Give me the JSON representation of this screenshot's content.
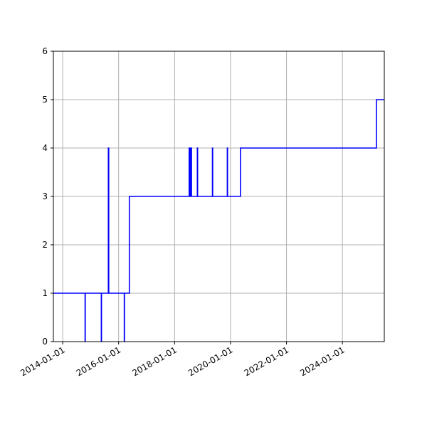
{
  "chart_data": {
    "type": "line",
    "title": "",
    "xlabel": "",
    "ylabel": "",
    "x_axis_kind": "date",
    "xlim": [
      "2013-09-01",
      "2025-07-01"
    ],
    "ylim": [
      0,
      6
    ],
    "grid": true,
    "legend": "none",
    "line_color": "#0000ff",
    "grid_color": "#b0b0b0",
    "x_ticks": [
      "2014-01-01",
      "2016-01-01",
      "2018-01-01",
      "2020-01-01",
      "2022-01-01",
      "2024-01-01"
    ],
    "y_ticks": [
      0,
      1,
      2,
      3,
      4,
      5,
      6
    ],
    "series": [
      {
        "style": "step",
        "points": [
          [
            "2013-09-01",
            1
          ],
          [
            "2014-10-20",
            1
          ],
          [
            "2014-10-20",
            0
          ],
          [
            "2014-10-22",
            0
          ],
          [
            "2014-10-22",
            1
          ],
          [
            "2015-05-20",
            1
          ],
          [
            "2015-05-20",
            0
          ],
          [
            "2015-05-22",
            0
          ],
          [
            "2015-05-22",
            1
          ],
          [
            "2015-08-20",
            1
          ],
          [
            "2015-08-20",
            4
          ],
          [
            "2015-08-25",
            4
          ],
          [
            "2015-08-25",
            1
          ],
          [
            "2016-03-15",
            1
          ],
          [
            "2016-03-15",
            0
          ],
          [
            "2016-03-17",
            0
          ],
          [
            "2016-03-17",
            1
          ],
          [
            "2016-05-20",
            1
          ],
          [
            "2016-05-20",
            3
          ],
          [
            "2018-07-10",
            3
          ],
          [
            "2018-07-10",
            4
          ],
          [
            "2018-07-20",
            4
          ],
          [
            "2018-07-20",
            3
          ],
          [
            "2018-07-25",
            3
          ],
          [
            "2018-07-25",
            4
          ],
          [
            "2018-08-10",
            4
          ],
          [
            "2018-08-10",
            3
          ],
          [
            "2018-10-25",
            3
          ],
          [
            "2018-10-25",
            4
          ],
          [
            "2018-10-28",
            4
          ],
          [
            "2018-10-28",
            3
          ],
          [
            "2019-05-10",
            3
          ],
          [
            "2019-05-10",
            4
          ],
          [
            "2019-05-13",
            4
          ],
          [
            "2019-05-13",
            3
          ],
          [
            "2019-11-20",
            3
          ],
          [
            "2019-11-20",
            4
          ],
          [
            "2019-11-23",
            4
          ],
          [
            "2019-11-23",
            3
          ],
          [
            "2020-05-10",
            3
          ],
          [
            "2020-05-10",
            4
          ],
          [
            "2025-03-20",
            4
          ],
          [
            "2025-03-20",
            5
          ],
          [
            "2025-07-01",
            5
          ]
        ]
      }
    ]
  }
}
